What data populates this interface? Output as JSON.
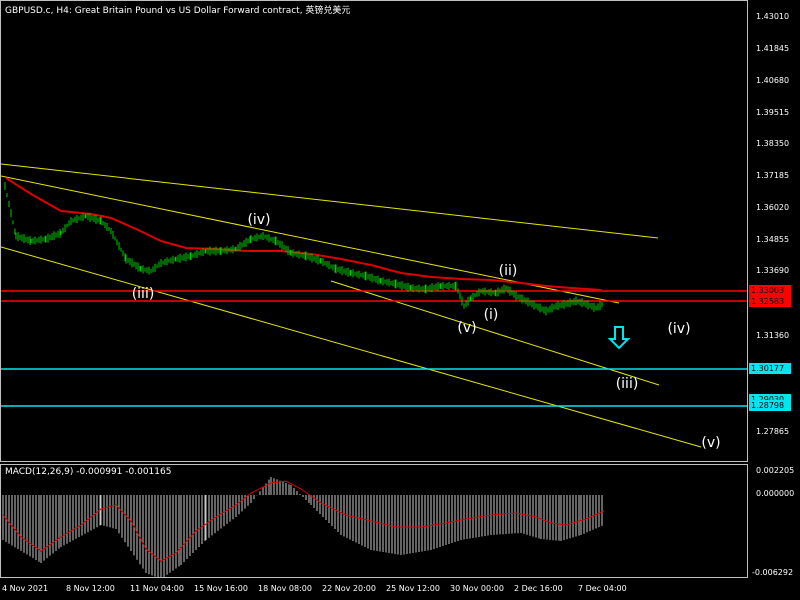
{
  "chart": {
    "title": "GBPUSD.c, H4:  Great Britain Pound vs US Dollar Forward contract, 英镑兑美元",
    "price_axis": [
      "1.43010",
      "1.41845",
      "1.40680",
      "1.39515",
      "1.38350",
      "1.37185",
      "1.36020",
      "1.34855",
      "1.33690",
      "1.31360",
      "1.27865"
    ],
    "price_tags": {
      "red1": "1.33003",
      "red2": "1.32583",
      "cyan1": "1.30177",
      "cyan2": "1.28798",
      "partial": "1.29030"
    },
    "wave_labels": {
      "iv_top": "(iv)",
      "iii_left": "(iii)",
      "v_left": "(v)",
      "i": "(i)",
      "ii": "(ii)",
      "iv_right": "(iv)",
      "iii_right": "(iii)",
      "v_right": "(v)"
    },
    "colors": {
      "candles": "#00cc00",
      "moving_average": "#dd0000",
      "trendlines": "#e6e600",
      "horizontal_red": "#ff0000",
      "horizontal_cyan": "#00e5ee",
      "arrow": "#00e5ee"
    }
  },
  "macd": {
    "title": "MACD(12,26,9) -0.000991 -0.001165",
    "axis": [
      "0.002205",
      "0.000000",
      "-0.006292"
    ]
  },
  "time_axis": [
    "4 Nov 2021",
    "8 Nov 12:00",
    "11 Nov 04:00",
    "15 Nov 16:00",
    "18 Nov 08:00",
    "22 Nov 20:00",
    "25 Nov 12:00",
    "30 Nov 00:00",
    "2 Dec 16:00",
    "7 Dec 04:00"
  ]
}
